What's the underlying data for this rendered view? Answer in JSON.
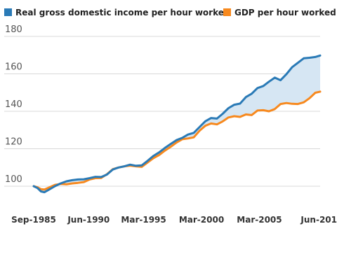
{
  "chart_data": {
    "type": "line",
    "title": "",
    "xlabel": "",
    "ylabel": "",
    "legend_position": "top-left",
    "grid": true,
    "fill_between_series": true,
    "fill_color": "#d6e6f3",
    "ylim": [
      90,
      180
    ],
    "yticks": [
      "100",
      "120",
      "140",
      "160",
      "180"
    ],
    "xtick_labels": [
      "Sep-1985",
      "Jun-1990",
      "Mar-1995",
      "Mar-2000",
      "Mar-2005",
      "Jun-201"
    ],
    "xtick_positions": [
      1985.67,
      1990.42,
      1995.17,
      2000.17,
      2005.17,
      2010.42
    ],
    "xlim": [
      1985.67,
      2010.42
    ],
    "series": [
      {
        "name": "Real gross domestic income per hour worked",
        "color": "#2a7ab6",
        "x": [
          1985.67,
          1986.0,
          1986.3,
          1986.6,
          1987.0,
          1987.5,
          1988.0,
          1988.5,
          1989.0,
          1989.5,
          1990.0,
          1990.5,
          1991.0,
          1991.5,
          1992.0,
          1992.5,
          1993.0,
          1993.5,
          1994.0,
          1994.5,
          1995.0,
          1995.5,
          1996.0,
          1996.5,
          1997.0,
          1997.5,
          1998.0,
          1998.5,
          1999.0,
          1999.5,
          2000.0,
          2000.5,
          2001.0,
          2001.5,
          2002.0,
          2002.5,
          2003.0,
          2003.5,
          2004.0,
          2004.5,
          2005.0,
          2005.5,
          2006.0,
          2006.5,
          2007.0,
          2007.5,
          2008.0,
          2008.5,
          2009.0,
          2009.5,
          2010.0,
          2010.42
        ],
        "values": [
          100.0,
          99.0,
          97.2,
          96.8,
          98.2,
          100.0,
          101.5,
          102.6,
          103.2,
          103.6,
          103.7,
          104.3,
          105.0,
          104.9,
          106.2,
          108.9,
          110.0,
          110.6,
          111.5,
          110.9,
          111.1,
          113.5,
          116.1,
          118.0,
          120.4,
          122.5,
          124.6,
          125.8,
          127.6,
          128.5,
          131.6,
          134.7,
          136.4,
          136.1,
          138.7,
          141.7,
          143.5,
          144.1,
          147.6,
          149.4,
          152.4,
          153.5,
          155.8,
          158.0,
          156.6,
          159.8,
          163.6,
          165.9,
          168.3,
          168.6,
          169.0,
          169.8
        ]
      },
      {
        "name": "GDP per hour worked",
        "color": "#f7891e",
        "x": [
          1985.67,
          1986.0,
          1986.3,
          1986.6,
          1987.0,
          1987.5,
          1988.0,
          1988.5,
          1989.0,
          1989.5,
          1990.0,
          1990.5,
          1991.0,
          1991.5,
          1992.0,
          1992.5,
          1993.0,
          1993.5,
          1994.0,
          1994.5,
          1995.0,
          1995.5,
          1996.0,
          1996.5,
          1997.0,
          1997.5,
          1998.0,
          1998.5,
          1999.0,
          1999.5,
          2000.0,
          2000.5,
          2001.0,
          2001.5,
          2002.0,
          2002.5,
          2003.0,
          2003.5,
          2004.0,
          2004.5,
          2005.0,
          2005.5,
          2006.0,
          2006.5,
          2007.0,
          2007.5,
          2008.0,
          2008.5,
          2009.0,
          2009.5,
          2010.0,
          2010.42
        ],
        "values": [
          100.0,
          99.4,
          98.4,
          98.2,
          99.3,
          100.7,
          101.2,
          101.0,
          101.5,
          101.8,
          102.2,
          103.6,
          104.3,
          104.4,
          106.4,
          109.1,
          110.0,
          110.6,
          111.0,
          110.6,
          110.3,
          112.6,
          114.9,
          116.6,
          119.0,
          121.0,
          123.3,
          125.1,
          125.5,
          126.1,
          129.6,
          132.3,
          133.5,
          133.0,
          134.6,
          136.7,
          137.4,
          137.0,
          138.3,
          138.0,
          140.4,
          140.6,
          140.0,
          141.2,
          143.9,
          144.4,
          144.0,
          143.9,
          144.8,
          147.0,
          149.9,
          150.5
        ]
      }
    ]
  }
}
